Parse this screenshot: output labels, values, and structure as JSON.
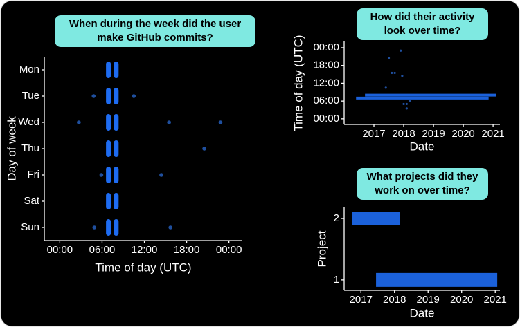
{
  "chart_data": [
    {
      "type": "scatter",
      "title": [
        "When during the week did the user",
        "make GitHub commits?"
      ],
      "x_label": "Time of day (UTC)",
      "y_label": "Day of week",
      "categories": [
        "Mon",
        "Tue",
        "Wed",
        "Thu",
        "Fri",
        "Sat",
        "Sun"
      ],
      "clusters": {
        "x": [
          6.9,
          8.0,
          6.9,
          8.0,
          6.9,
          8.0,
          6.9,
          8.0,
          6.9,
          8.0,
          6.9,
          8.0,
          6.9,
          8.0
        ],
        "day": [
          "Mon",
          "Mon",
          "Tue",
          "Tue",
          "Wed",
          "Wed",
          "Thu",
          "Thu",
          "Fri",
          "Fri",
          "Sat",
          "Sat",
          "Sun",
          "Sun"
        ]
      },
      "points": {
        "x": [
          4.8,
          10.5,
          2.7,
          15.5,
          22.8,
          20.5,
          5.9,
          14.4,
          4.9,
          15.7
        ],
        "day": [
          "Tue",
          "Tue",
          "Wed",
          "Wed",
          "Wed",
          "Thu",
          "Fri",
          "Fri",
          "Sun",
          "Sun"
        ]
      },
      "color": "#1e6cf2",
      "point_color": "#1f4f9e",
      "xlim": [
        -2.2,
        25.9
      ],
      "xticks": [
        {
          "value": 0,
          "label": "00:00"
        },
        {
          "value": 6,
          "label": "06:00"
        },
        {
          "value": 12,
          "label": "12:00"
        },
        {
          "value": 18,
          "label": "18:00"
        },
        {
          "value": 24,
          "label": "00:00"
        }
      ]
    },
    {
      "type": "scatter",
      "title": [
        "How did their activity",
        "look over time?"
      ],
      "x_label": "Date",
      "y_label": "Time of day (UTC)",
      "bands": [
        {
          "x": [
            2016.4,
            2020.85
          ],
          "values": [
            7,
            7
          ]
        },
        {
          "x": [
            2016.7,
            2021.1
          ],
          "values": [
            8,
            8
          ]
        }
      ],
      "points": {
        "x": [
          2017.5,
          2017.6,
          2017.7,
          2017.9,
          2017.95,
          2017.4,
          2018.0,
          2018.1,
          2018.2,
          2018.1
        ],
        "values": [
          20.5,
          15.5,
          15.5,
          23,
          14.5,
          10.5,
          5,
          5,
          6,
          3.5
        ]
      },
      "color": "#1e6cf2",
      "point_color": "#1f4f9e",
      "band_width": 4,
      "xlim": [
        2016.0,
        2021.23
      ],
      "xticks": [
        2017,
        2018,
        2019,
        2020,
        2021
      ],
      "ylim": [
        -1.9,
        26.1
      ],
      "yticks": [
        {
          "value": 0,
          "label": "00:00"
        },
        {
          "value": 6,
          "label": "06:00"
        },
        {
          "value": 12,
          "label": "12:00"
        },
        {
          "value": 18,
          "label": "18:00"
        },
        {
          "value": 24,
          "label": "00:00"
        }
      ]
    },
    {
      "type": "scatter",
      "title": [
        "What projects did they",
        "work on over time?"
      ],
      "x_label": "Date",
      "y_label": "Project",
      "bands": [
        {
          "x": [
            2016.73,
            2018.15
          ],
          "values": [
            2,
            2
          ]
        },
        {
          "x": [
            2017.45,
            2021.06
          ],
          "values": [
            1,
            1
          ]
        }
      ],
      "color": "#1e6cf2",
      "band_width": 20,
      "xlim": [
        2016.5,
        2021.14
      ],
      "xticks": [
        2017,
        2018,
        2019,
        2020,
        2021
      ],
      "ylim": [
        0.83,
        2.18
      ],
      "yticks": [
        1,
        2
      ]
    }
  ]
}
